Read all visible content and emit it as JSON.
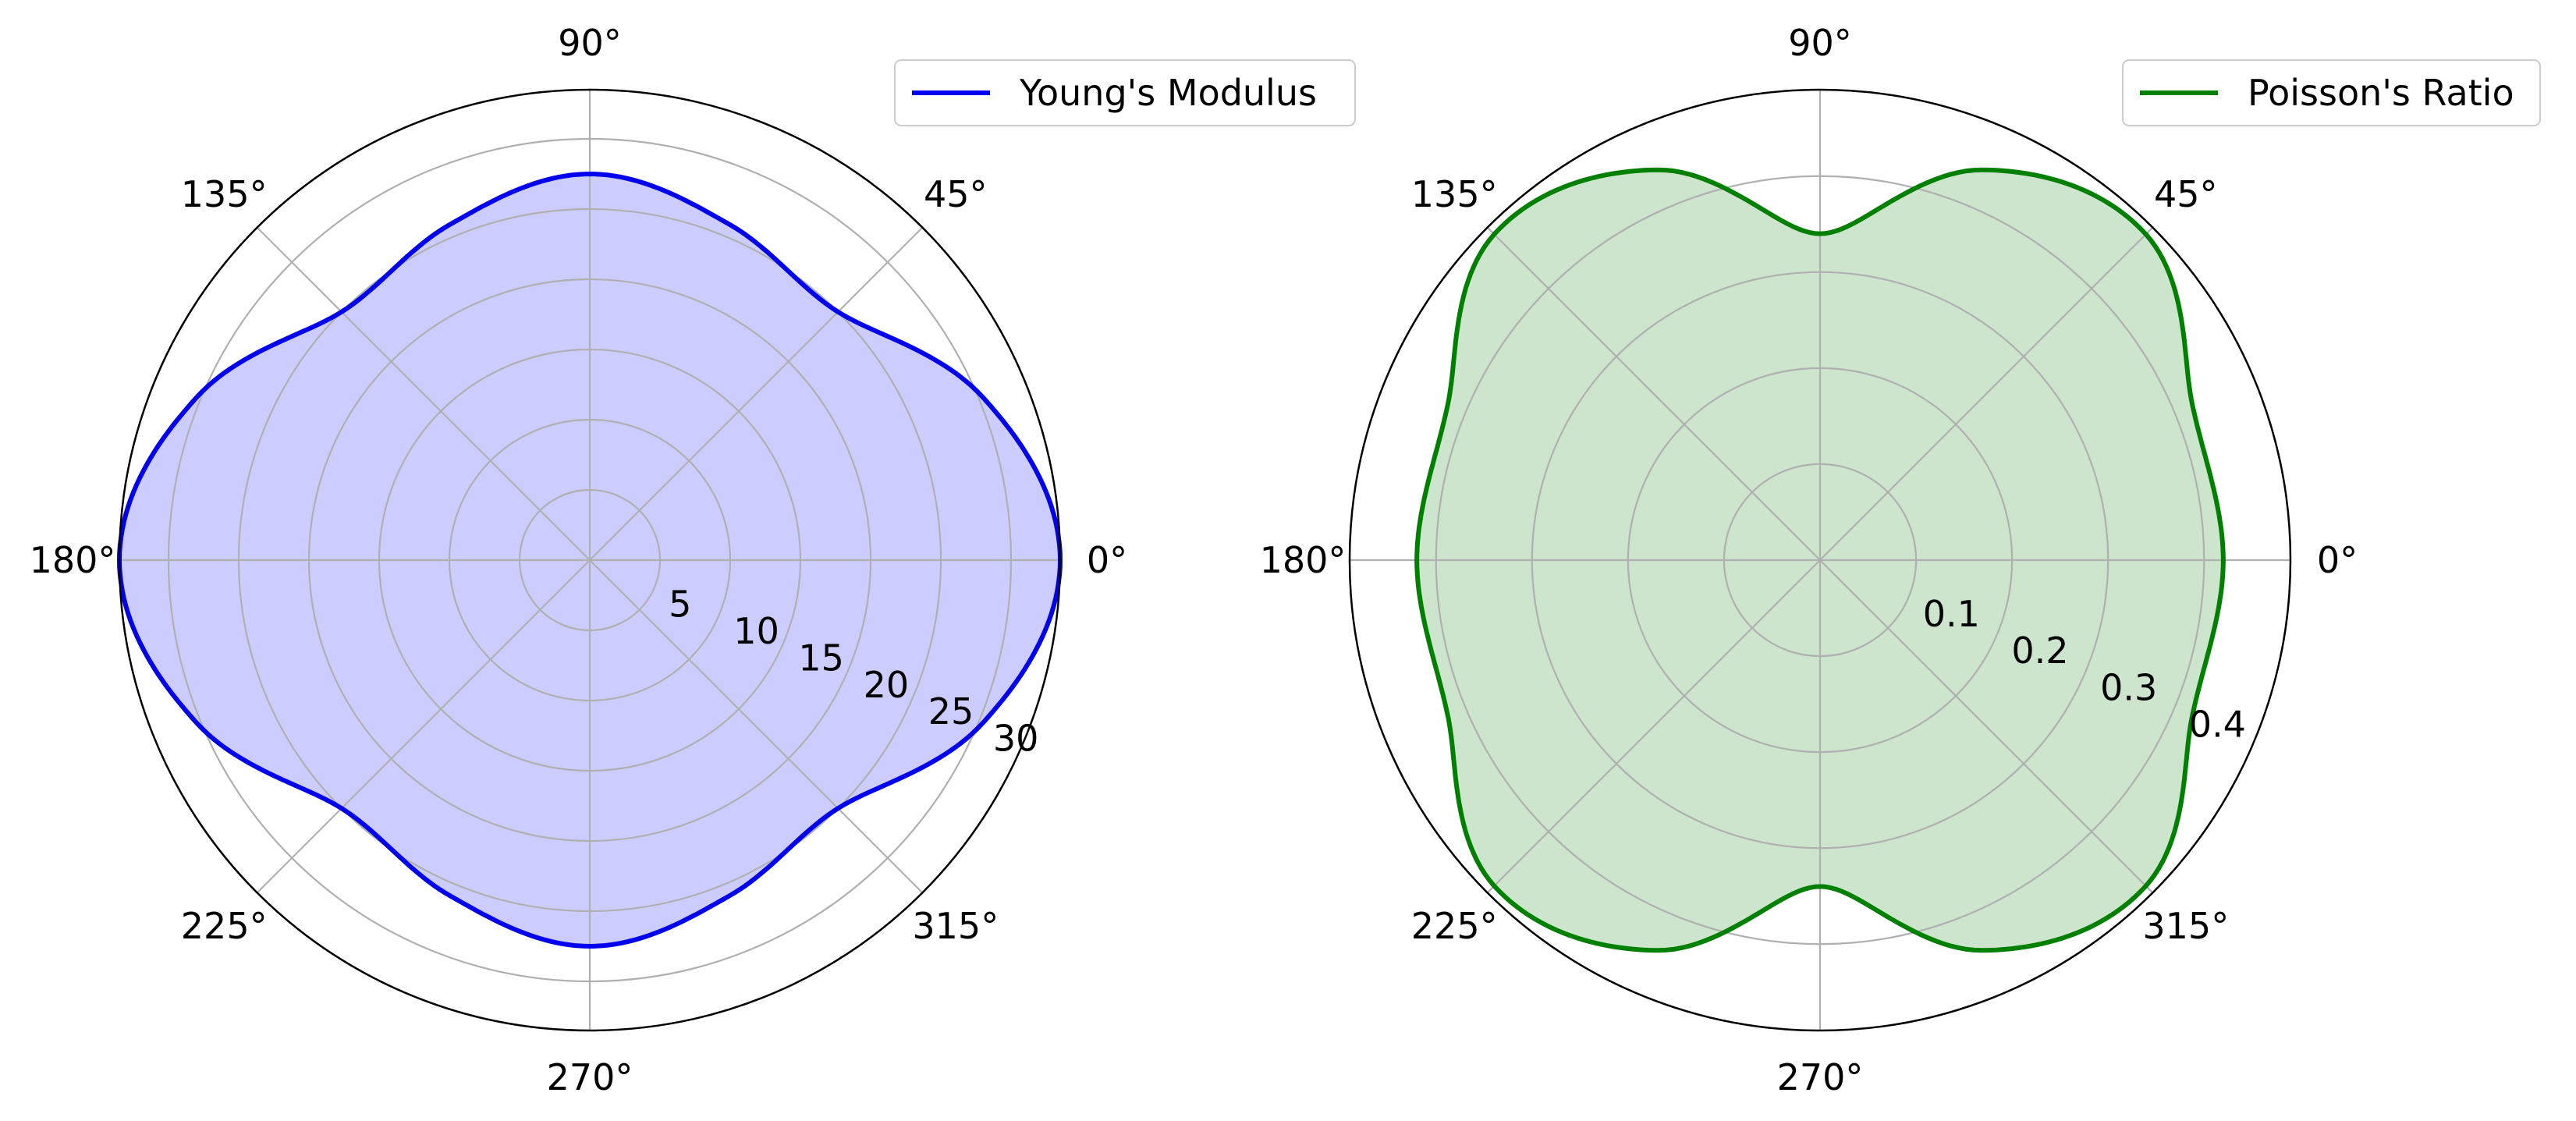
{
  "chart_data": [
    {
      "type": "polar-line",
      "angle_ticks_deg": [
        0,
        45,
        90,
        135,
        180,
        225,
        270,
        315
      ],
      "angle_tick_labels": [
        "0°",
        "45°",
        "90°",
        "135°",
        "180°",
        "225°",
        "270°",
        "315°"
      ],
      "radial_ticks": [
        5,
        10,
        15,
        20,
        25,
        30
      ],
      "radial_tick_labels": [
        "5",
        "10",
        "15",
        "20",
        "25",
        "30"
      ],
      "rlim": [
        0,
        33.5
      ],
      "grid": true,
      "legend": "top-right",
      "series": [
        {
          "name": "Young's Modulus",
          "color": "#0000ee",
          "fill": "#ccccff",
          "theta_deg": [
            0,
            22.5,
            45,
            67.5,
            90,
            112.5,
            135,
            157.5,
            180,
            202.5,
            225,
            247.5,
            270,
            292.5,
            315,
            337.5,
            360
          ],
          "r": [
            33.5,
            30.3,
            25.0,
            25.9,
            27.5,
            25.9,
            25.0,
            30.3,
            33.5,
            30.3,
            25.0,
            25.9,
            27.5,
            25.9,
            25.0,
            30.3,
            33.5
          ]
        }
      ]
    },
    {
      "type": "polar-line",
      "angle_ticks_deg": [
        0,
        45,
        90,
        135,
        180,
        225,
        270,
        315
      ],
      "angle_tick_labels": [
        "0°",
        "45°",
        "90°",
        "135°",
        "180°",
        "225°",
        "270°",
        "315°"
      ],
      "radial_ticks": [
        0.1,
        0.2,
        0.3,
        0.4
      ],
      "radial_tick_labels": [
        "0.1",
        "0.2",
        "0.3",
        "0.4"
      ],
      "rlim": [
        0,
        0.49
      ],
      "grid": true,
      "legend": "top-right",
      "series": [
        {
          "name": "Poisson's Ratio",
          "color": "#008000",
          "fill": "#cce5cc",
          "theta_deg": [
            0,
            22.5,
            45,
            67.5,
            90,
            112.5,
            135,
            157.5,
            180,
            202.5,
            225,
            247.5,
            270,
            292.5,
            315,
            337.5,
            360
          ],
          "r": [
            0.42,
            0.42,
            0.48,
            0.44,
            0.34,
            0.44,
            0.48,
            0.42,
            0.42,
            0.42,
            0.48,
            0.44,
            0.34,
            0.44,
            0.48,
            0.42,
            0.42
          ]
        }
      ]
    }
  ]
}
